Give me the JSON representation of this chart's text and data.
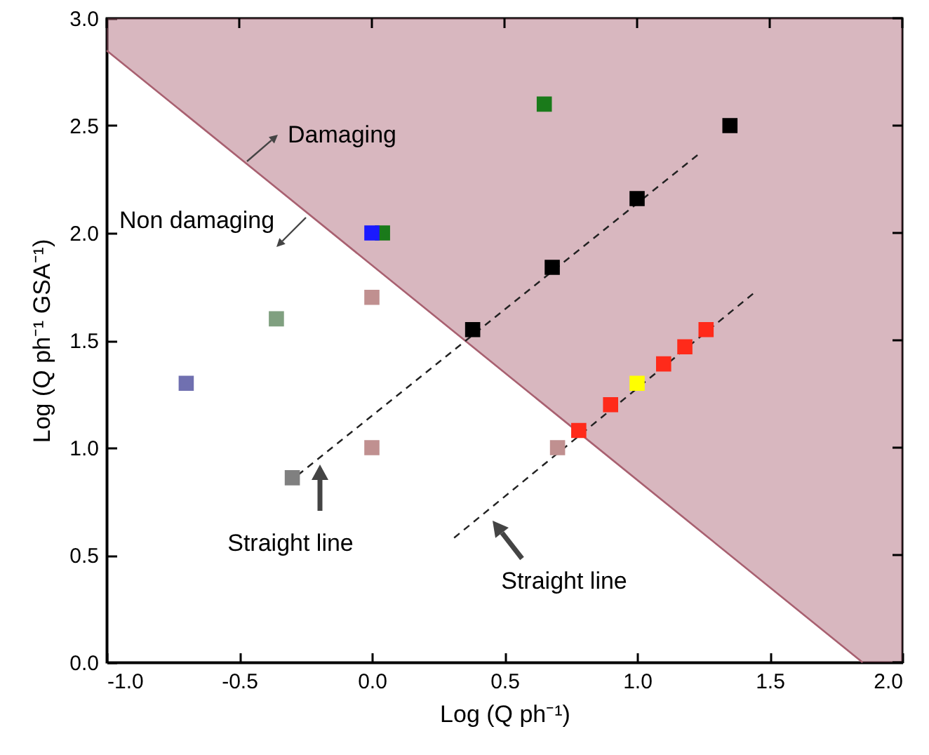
{
  "chart_data": {
    "type": "scatter",
    "xlabel": "Log (Q ph⁻¹)",
    "ylabel": "Log (Q ph⁻¹ GSA⁻¹)",
    "xlim": [
      -1,
      2
    ],
    "ylim": [
      0,
      3
    ],
    "xticks": [
      {
        "value": -1,
        "label": "-1.0"
      },
      {
        "value": -0.5,
        "label": "-0.5"
      },
      {
        "value": 0,
        "label": "0.0"
      },
      {
        "value": 0.5,
        "label": "0.5"
      },
      {
        "value": 1,
        "label": "1.0"
      },
      {
        "value": 1.5,
        "label": "1.5"
      },
      {
        "value": 2,
        "label": "2.0"
      }
    ],
    "yticks": [
      {
        "value": 0,
        "label": "0.0"
      },
      {
        "value": 0.5,
        "label": "0.5"
      },
      {
        "value": 1,
        "label": "1.0"
      },
      {
        "value": 1.5,
        "label": "1.5"
      },
      {
        "value": 2,
        "label": "2.0"
      },
      {
        "value": 2.5,
        "label": "2.5"
      },
      {
        "value": 3,
        "label": "3.0"
      }
    ],
    "grid": false,
    "marker": "square",
    "series": [
      {
        "type": "line",
        "color": "#a86070",
        "x": [
          -1,
          1.85,
          2
        ],
        "values": [
          2.85,
          0,
          null
        ],
        "lower": [
          2.85,
          0,
          0
        ],
        "upper": [
          3,
          3,
          3
        ],
        "marker": "none",
        "line_style": "solid"
      },
      {
        "type": "line",
        "color": "#222222",
        "x": [
          -0.317,
          1.235
        ],
        "values": [
          0.835,
          2.37
        ],
        "marker": "none",
        "line_style": "dashed"
      },
      {
        "type": "line",
        "color": "#222222",
        "x": [
          0.31,
          1.44
        ],
        "values": [
          0.58,
          1.72
        ],
        "marker": "none",
        "line_style": "dashed"
      },
      {
        "color": "#000000",
        "x": [
          0.38,
          0.68,
          1.0,
          1.35
        ],
        "values": [
          1.55,
          1.84,
          2.16,
          2.5
        ]
      },
      {
        "color": "#ff2a1a",
        "x": [
          0.78,
          0.9,
          1.1,
          1.18,
          1.26
        ],
        "values": [
          1.08,
          1.2,
          1.39,
          1.47,
          1.55
        ]
      },
      {
        "color": "#ffff00",
        "x": [
          1.0
        ],
        "values": [
          1.3
        ]
      },
      {
        "color": "#1a7a1a",
        "x": [
          0.04,
          0.65
        ],
        "values": [
          2.0,
          2.6
        ]
      },
      {
        "color": "#1a1aff",
        "x": [
          0.0
        ],
        "values": [
          2.0
        ]
      },
      {
        "color": "#7070b0",
        "x": [
          -0.7
        ],
        "values": [
          1.3
        ]
      },
      {
        "color": "#80a080",
        "x": [
          -0.36
        ],
        "values": [
          1.6
        ]
      },
      {
        "color": "#c09090",
        "x": [
          0.0,
          0.0,
          0.7
        ],
        "values": [
          1.7,
          1.0,
          1.0
        ]
      },
      {
        "color": "#808080",
        "x": [
          -0.3
        ],
        "values": [
          0.86
        ]
      }
    ],
    "annotations": [
      "Damaging",
      "Non damaging",
      "Straight line",
      "Straight line"
    ]
  }
}
